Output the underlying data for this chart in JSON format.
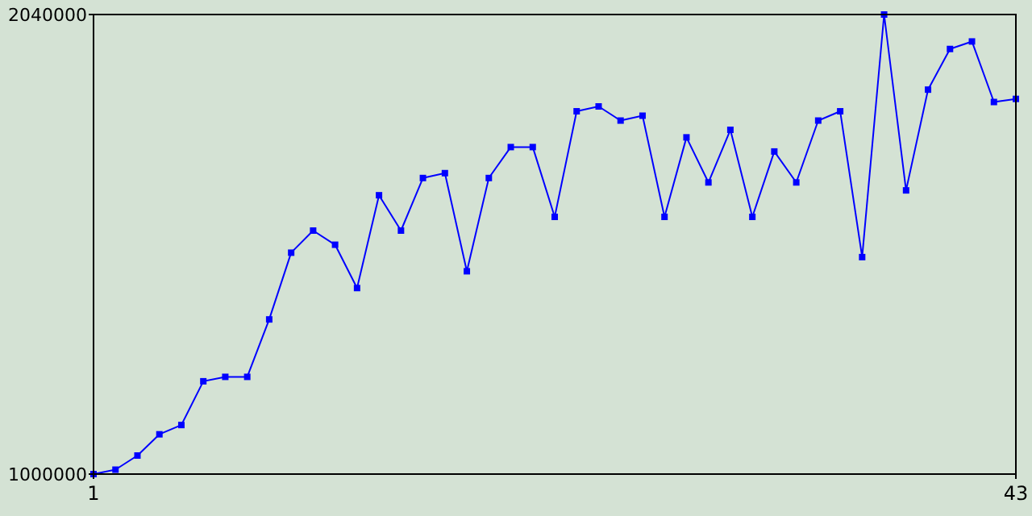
{
  "chart_data": {
    "type": "line",
    "x": [
      1,
      2,
      3,
      4,
      5,
      6,
      7,
      8,
      9,
      10,
      11,
      12,
      13,
      14,
      15,
      16,
      17,
      18,
      19,
      20,
      21,
      22,
      23,
      24,
      25,
      26,
      27,
      28,
      29,
      30,
      31,
      32,
      33,
      34,
      35,
      36,
      37,
      38,
      39,
      40,
      41,
      42,
      43
    ],
    "series": [
      {
        "color": "#0000ff",
        "values": [
          1000000,
          1010000,
          1042000,
          1090000,
          1111000,
          1210000,
          1220000,
          1220000,
          1350000,
          1501000,
          1551000,
          1519000,
          1421000,
          1631000,
          1551000,
          1670000,
          1681000,
          1459000,
          1670000,
          1740000,
          1740000,
          1582000,
          1821000,
          1832000,
          1800000,
          1811000,
          1582000,
          1762000,
          1660000,
          1779000,
          1582000,
          1730000,
          1660000,
          1800000,
          1821000,
          1491000,
          2040000,
          1642000,
          1870000,
          1962000,
          1979000,
          1842000,
          1849000
        ]
      }
    ],
    "xlim": [
      1,
      43
    ],
    "ylim": [
      1000000,
      2040000
    ],
    "xticks": [
      1,
      43
    ],
    "yticks": [
      1000000,
      2040000
    ],
    "marker": "square",
    "line_style": "solid"
  }
}
